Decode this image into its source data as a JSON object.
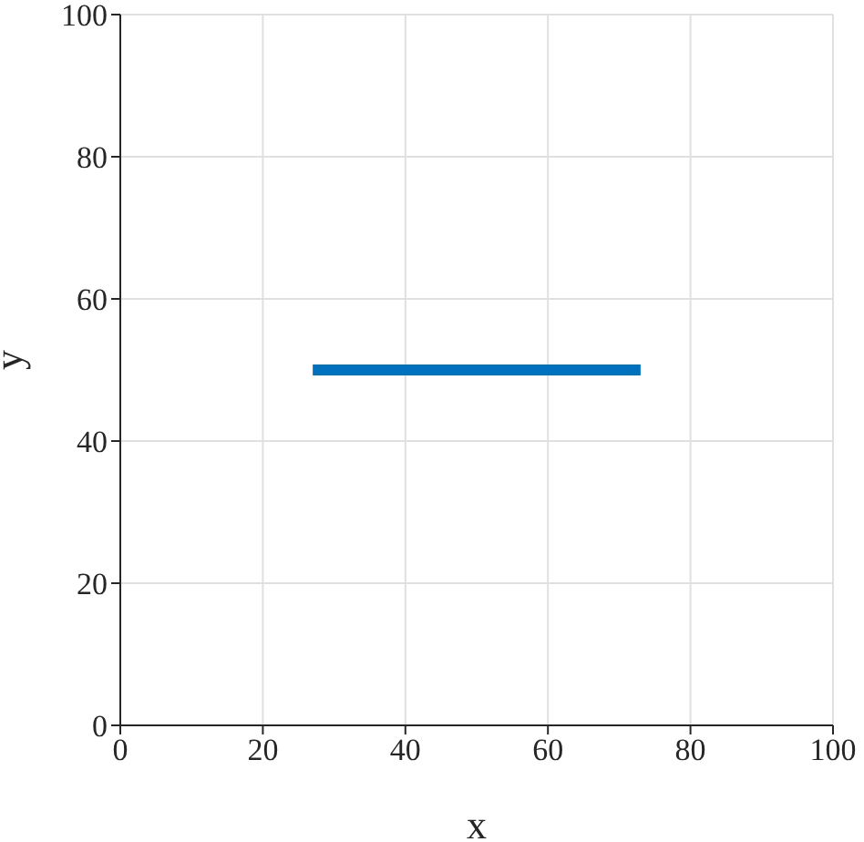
{
  "chart_data": {
    "type": "line",
    "xlabel": "x",
    "ylabel": "y",
    "x": [
      27,
      73
    ],
    "series": [
      {
        "color": "#0072bd",
        "values": [
          50,
          50
        ]
      }
    ],
    "xlim": [
      0,
      100
    ],
    "xticks": [
      0,
      20,
      40,
      60,
      80,
      100
    ],
    "ylim": [
      0,
      100
    ],
    "yticks": [
      0,
      20,
      40,
      60,
      80,
      100
    ],
    "grid": true,
    "marker": "none",
    "line_style": "solid"
  }
}
